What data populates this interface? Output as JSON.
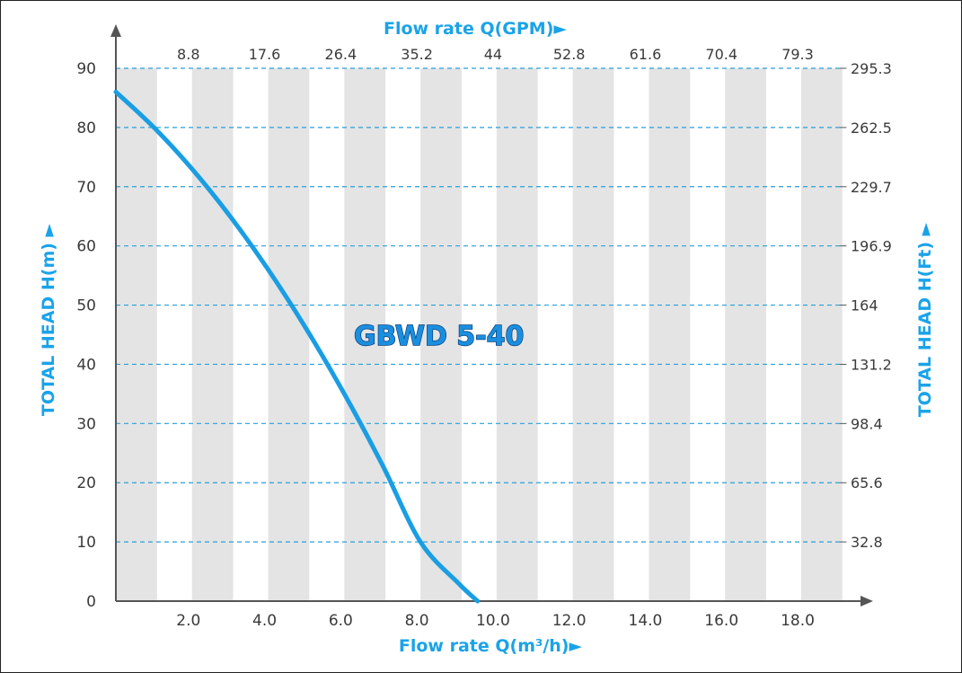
{
  "colors": {
    "accent": "#1aa3e8",
    "curve": "#1a9ee3",
    "band": "#e4e4e5",
    "grid": "#2a9fd6",
    "axis": "#555555",
    "tick_text": "#3a3a3a"
  },
  "chart_data": {
    "type": "line",
    "series_label": "GBWD 5-40",
    "xlabel": "Flow rate Q(m³/h)►",
    "ylabel": "TOTAL HEAD H(m) ►",
    "x2label": "Flow rate Q(GPM)►",
    "y2label": "TOTAL HEAD H(Ft) ►",
    "xlim": [
      0,
      19
    ],
    "ylim": [
      0,
      90
    ],
    "x_ticks": [
      2,
      4,
      6,
      8,
      10,
      12,
      14,
      16,
      18
    ],
    "x_tick_labels": [
      "2.0",
      "4.0",
      "6.0",
      "8.0",
      "10.0",
      "12.0",
      "14.0",
      "16.0",
      "18.0"
    ],
    "x2_tick_labels": [
      "8.8",
      "17.6",
      "26.4",
      "35.2",
      "44",
      "52.8",
      "61.6",
      "70.4",
      "79.3"
    ],
    "y_ticks": [
      0,
      10,
      20,
      30,
      40,
      50,
      60,
      70,
      80,
      90
    ],
    "y_tick_labels": [
      "0",
      "10",
      "20",
      "30",
      "40",
      "50",
      "60",
      "70",
      "80",
      "90"
    ],
    "y2_tick_labels": [
      "",
      "32.8",
      "65.6",
      "98.4",
      "131.2",
      "164",
      "196.9",
      "229.7",
      "262.5",
      "295.3"
    ],
    "grid": true,
    "series": [
      {
        "name": "GBWD 5-40",
        "x": [
          0,
          1,
          2,
          3,
          4,
          5,
          6,
          7,
          8,
          9,
          9.5
        ],
        "y": [
          86,
          80,
          73,
          65,
          56,
          46,
          35,
          23,
          10,
          3,
          0
        ]
      }
    ]
  }
}
